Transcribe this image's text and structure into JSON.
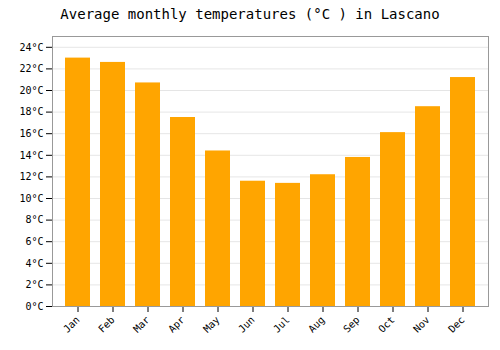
{
  "chart_data": {
    "type": "bar",
    "title": "Average monthly temperatures (°C ) in Lascano",
    "categories": [
      "Jan",
      "Feb",
      "Mar",
      "Apr",
      "May",
      "Jun",
      "Jul",
      "Aug",
      "Sep",
      "Oct",
      "Nov",
      "Dec"
    ],
    "values": [
      23.0,
      22.6,
      20.7,
      17.5,
      14.4,
      11.6,
      11.4,
      12.2,
      13.8,
      16.1,
      18.5,
      21.2
    ],
    "color": "#FFA500",
    "ylim": [
      0,
      25
    ],
    "yticks": [
      {
        "value": 0,
        "label": "0°C"
      },
      {
        "value": 2,
        "label": "2°C"
      },
      {
        "value": 4,
        "label": "4°C"
      },
      {
        "value": 6,
        "label": "6°C"
      },
      {
        "value": 8,
        "label": "8°C"
      },
      {
        "value": 10,
        "label": "10°C"
      },
      {
        "value": 12,
        "label": "12°C"
      },
      {
        "value": 14,
        "label": "14°C"
      },
      {
        "value": 16,
        "label": "16°C"
      },
      {
        "value": 18,
        "label": "18°C"
      },
      {
        "value": 20,
        "label": "20°C"
      },
      {
        "value": 22,
        "label": "22°C"
      },
      {
        "value": 24,
        "label": "24°C"
      }
    ],
    "grid": true
  }
}
